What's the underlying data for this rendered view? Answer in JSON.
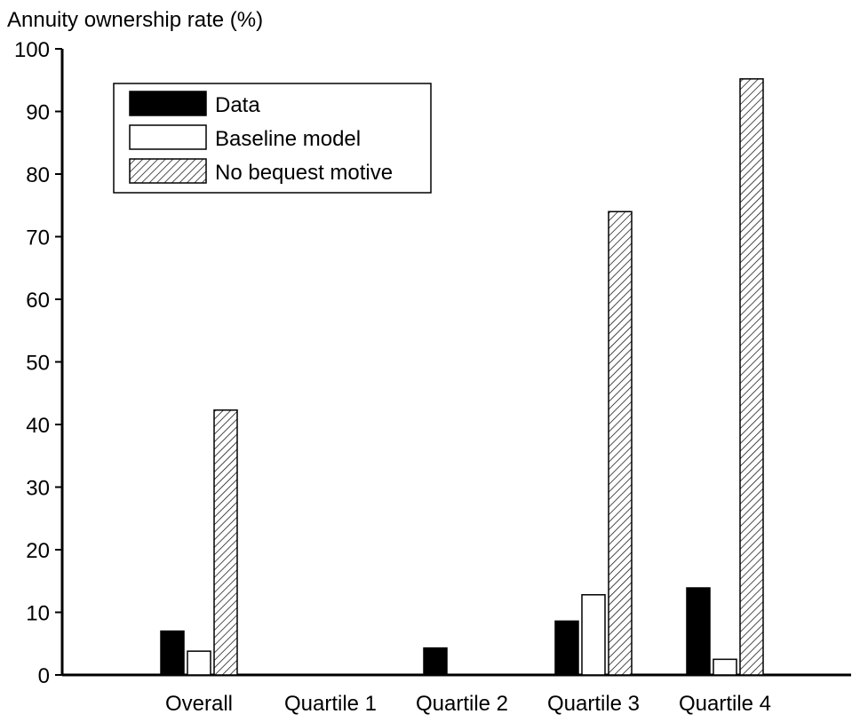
{
  "chart_data": {
    "type": "bar",
    "title": "",
    "ylabel": "Annuity ownership rate (%)",
    "xlabel": "",
    "ylim": [
      0,
      100
    ],
    "yticks": [
      0,
      10,
      20,
      30,
      40,
      50,
      60,
      70,
      80,
      90,
      100
    ],
    "categories": [
      "Overall",
      "Quartile 1",
      "Quartile 2",
      "Quartile 3",
      "Quartile 4"
    ],
    "series": [
      {
        "name": "Data",
        "values": [
          7.0,
          0.0,
          4.3,
          8.6,
          13.9
        ],
        "fill": "solid",
        "color": "#000000"
      },
      {
        "name": "Baseline model",
        "values": [
          3.8,
          0.0,
          0.0,
          12.8,
          2.5
        ],
        "fill": "hollow",
        "color": "#ffffff"
      },
      {
        "name": "No bequest motive",
        "values": [
          42.3,
          0.0,
          0.0,
          74.0,
          95.2
        ],
        "fill": "hatched",
        "color": "#000000"
      }
    ],
    "legend": {
      "position": "top-left"
    },
    "grid": false
  }
}
